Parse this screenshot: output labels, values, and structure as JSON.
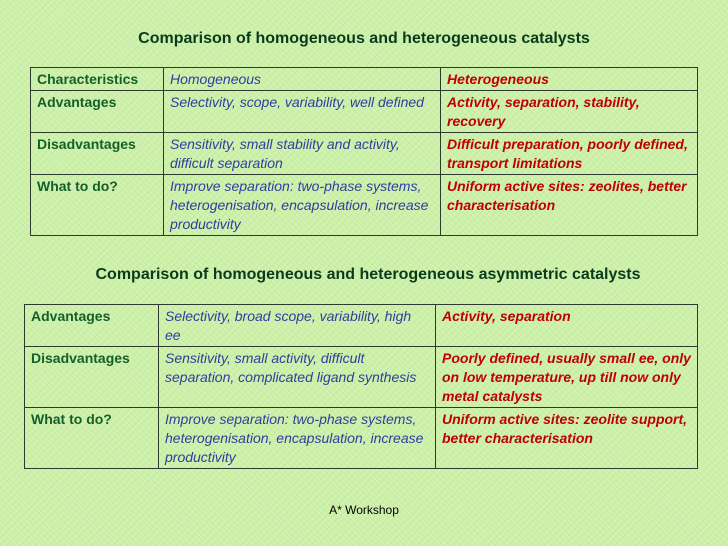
{
  "title1": "Comparison of homogeneous and heterogeneous catalysts",
  "title2": "Comparison of homogeneous and heterogeneous asymmetric catalysts",
  "table1": [
    [
      "Characteristics",
      "Homogeneous",
      "Heterogeneous"
    ],
    [
      "Advantages",
      "Selectivity, scope, variability, well defined",
      "Activity, separation, stability, recovery"
    ],
    [
      "Disadvantages",
      "Sensitivity, small stability and activity,  difficult separation",
      "Difficult preparation, poorly defined, transport limitations"
    ],
    [
      "What to do?",
      "Improve separation: two-phase systems, heterogenisation, encapsulation, increase productivity",
      "Uniform active sites: zeolites, better characterisation"
    ]
  ],
  "table2": [
    [
      "Advantages",
      "Selectivity, broad scope, variability, high ee",
      "Activity, separation"
    ],
    [
      "Disadvantages",
      "Sensitivity, small activity,  difficult separation, complicated ligand synthesis",
      "Poorly defined, usually small ee, only on low temperature, up till now only metal catalysts"
    ],
    [
      "What to do?",
      "Improve separation: two-phase systems, heterogenisation, encapsulation, increase productivity",
      "Uniform active sites: zeolite support, better characterisation"
    ]
  ],
  "footer": "A* Workshop"
}
